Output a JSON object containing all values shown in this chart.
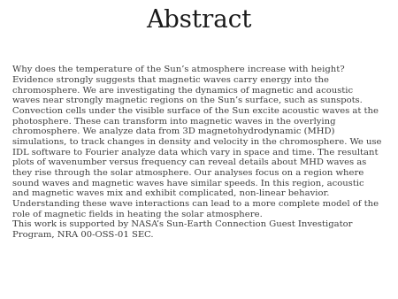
{
  "title": "Abstract",
  "title_fontsize": 20,
  "title_font": "serif",
  "body_text": "Why does the temperature of the Sun’s atmosphere increase with height?\nEvidence strongly suggests that magnetic waves carry energy into the\nchromosphere. We are investigating the dynamics of magnetic and acoustic\nwaves near strongly magnetic regions on the Sun’s surface, such as sunspots.\nConvection cells under the visible surface of the Sun excite acoustic waves at the\nphotosphere. These can transform into magnetic waves in the overlying\nchromosphere. We analyze data from 3D magnetohydrodynamic (MHD)\nsimulations, to track changes in density and velocity in the chromosphere. We use\nIDL software to Fourier analyze data which vary in space and time. The resultant\nplots of wavenumber versus frequency can reveal details about MHD waves as\nthey rise through the solar atmosphere. Our analyses focus on a region where\nsound waves and magnetic waves have similar speeds. In this region, acoustic\nand magnetic waves mix and exhibit complicated, non-linear behavior.\nUnderstanding these wave interactions can lead to a more complete model of the\nrole of magnetic fields in heating the solar atmosphere.\nThis work is supported by NASA’s Sun-Earth Connection Guest Investigator\nProgram, NRA 00-OSS-01 SEC.",
  "body_fontsize": 7.2,
  "body_font": "serif",
  "text_color": "#3a3a3a",
  "background_color": "#ffffff",
  "title_color": "#1a1a1a"
}
